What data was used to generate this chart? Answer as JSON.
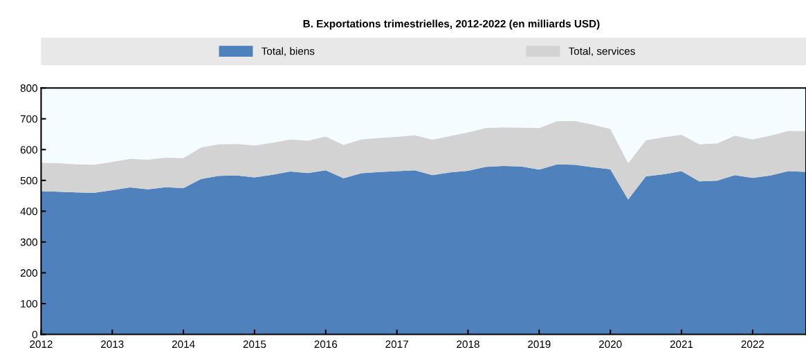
{
  "chart_data": {
    "type": "area",
    "stacked": true,
    "title": "B. Exportations trimestrielles, 2012-2022 (en milliards USD)",
    "x": [
      2012,
      2012.25,
      2012.5,
      2012.75,
      2013,
      2013.25,
      2013.5,
      2013.75,
      2014,
      2014.25,
      2014.5,
      2014.75,
      2015,
      2015.25,
      2015.5,
      2015.75,
      2016,
      2016.25,
      2016.5,
      2016.75,
      2017,
      2017.25,
      2017.5,
      2017.75,
      2018,
      2018.25,
      2018.5,
      2018.75,
      2019,
      2019.25,
      2019.5,
      2019.75,
      2020,
      2020.25,
      2020.5,
      2020.75,
      2021,
      2021.25,
      2021.5,
      2021.75,
      2022,
      2022.25,
      2022.5,
      2022.75
    ],
    "series": [
      {
        "name": "Total, biens",
        "color": "#4f81bd",
        "values": [
          465,
          463,
          461,
          460,
          468,
          477,
          471,
          478,
          475,
          505,
          515,
          516,
          510,
          518,
          529,
          524,
          533,
          507,
          523,
          527,
          530,
          533,
          517,
          526,
          531,
          544,
          547,
          545,
          535,
          552,
          551,
          543,
          536,
          438,
          513,
          520,
          530,
          497,
          499,
          517,
          508,
          516,
          530,
          528
        ]
      },
      {
        "name": "Total, services",
        "color": "#d3d3d3",
        "values": [
          92,
          93,
          91,
          91,
          92,
          93,
          96,
          96,
          97,
          102,
          102,
          102,
          103,
          104,
          104,
          105,
          109,
          108,
          110,
          111,
          111,
          114,
          115,
          118,
          125,
          126,
          125,
          126,
          135,
          140,
          142,
          138,
          131,
          117,
          117,
          120,
          118,
          120,
          121,
          128,
          125,
          129,
          130,
          132
        ]
      }
    ],
    "xlim": [
      2012,
      2022.75
    ],
    "xticks": [
      2012,
      2013,
      2014,
      2015,
      2016,
      2017,
      2018,
      2019,
      2020,
      2021,
      2022
    ],
    "ylim": [
      0,
      800
    ],
    "yticks": [
      0,
      100,
      200,
      300,
      400,
      500,
      600,
      700,
      800
    ],
    "legend": "top",
    "grid": false
  }
}
